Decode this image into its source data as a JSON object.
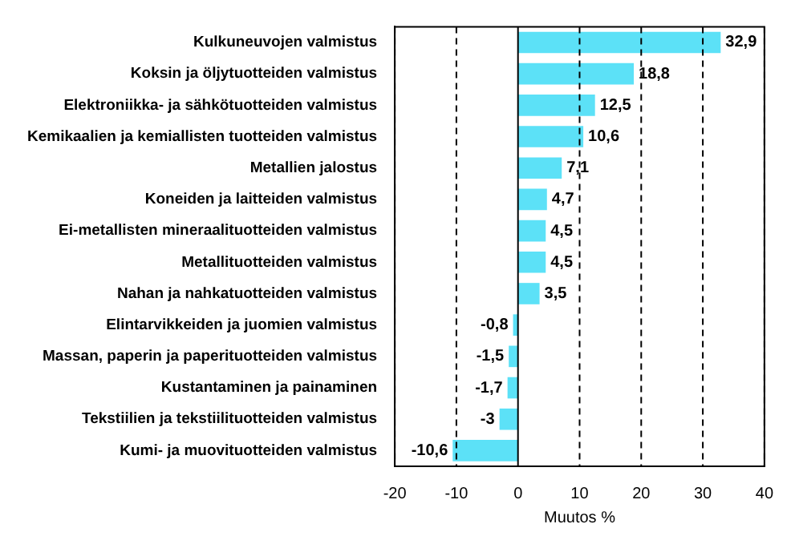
{
  "chart_data": {
    "type": "bar",
    "orientation": "horizontal",
    "xlabel": "Muutos %",
    "categories": [
      "Kulkuneuvojen valmistus",
      "Koksin ja öljytuotteiden valmistus",
      "Elektroniikka- ja sähkötuotteiden valmistus",
      "Kemikaalien ja kemiallisten tuotteiden valmistus",
      "Metallien jalostus",
      "Koneiden ja laitteiden valmistus",
      "Ei-metallisten mineraalituotteiden valmistus",
      "Metallituotteiden valmistus",
      "Nahan ja nahkatuotteiden valmistus",
      "Elintarvikkeiden ja juomien valmistus",
      "Massan, paperin ja paperituotteiden valmistus",
      "Kustantaminen ja painaminen",
      "Tekstiilien ja tekstiilituotteiden valmistus",
      "Kumi- ja muovituotteiden valmistus"
    ],
    "values": [
      32.9,
      18.8,
      12.5,
      10.6,
      7.1,
      4.7,
      4.5,
      4.5,
      3.5,
      -0.8,
      -1.5,
      -1.7,
      -3,
      -10.6
    ],
    "value_labels": [
      "32,9",
      "18,8",
      "12,5",
      "10,6",
      "7,1",
      "4,7",
      "4,5",
      "4,5",
      "3,5",
      "-0,8",
      "-1,5",
      "-1,7",
      "-3",
      "-10,6"
    ],
    "color": "#5ce1f7",
    "xlim": [
      -20,
      40
    ],
    "xticks": [
      -20,
      -10,
      0,
      10,
      20,
      30,
      40
    ],
    "grid": "x",
    "legend": false
  }
}
